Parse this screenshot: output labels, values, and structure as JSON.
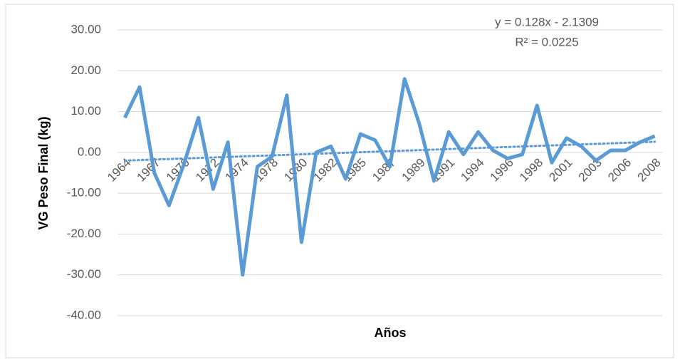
{
  "chart_data": {
    "type": "line",
    "y_label": "VG Peso Final (kg)",
    "x_label": "Años",
    "categories": [
      "1964",
      null,
      "1967",
      null,
      "1970",
      null,
      "1972",
      null,
      "1974",
      null,
      "1978",
      null,
      "1980",
      null,
      "1982",
      null,
      "1985",
      null,
      "1987",
      null,
      "1989",
      null,
      "1991",
      null,
      "1994",
      null,
      "1996",
      null,
      "1998",
      null,
      "2001",
      null,
      "2003",
      null,
      "2006",
      null,
      "2008"
    ],
    "values": [
      8.5,
      16,
      -5,
      -13,
      -3,
      8.5,
      -9,
      2.5,
      -30,
      -3.5,
      -1,
      14,
      -22,
      0,
      1.5,
      -6.5,
      4.5,
      3,
      -3.5,
      18,
      7,
      -7,
      5,
      -0.5,
      5,
      0.5,
      -1.5,
      -0.5,
      11.5,
      -2.5,
      3.5,
      1.5,
      -2,
      0.5,
      0.5,
      2.5,
      4
    ],
    "color": "#5b9bd5",
    "ylim": [
      -40,
      30
    ],
    "yticks": [
      {
        "value": -40,
        "label": "-40.00"
      },
      {
        "value": -30,
        "label": "-30.00"
      },
      {
        "value": -20,
        "label": "-20.00"
      },
      {
        "value": -10,
        "label": "-10.00"
      },
      {
        "value": 0,
        "label": "0.00"
      },
      {
        "value": 10,
        "label": "10.00"
      },
      {
        "value": 20,
        "label": "20.00"
      },
      {
        "value": 30,
        "label": "30.00"
      }
    ],
    "grid": true,
    "trendline": {
      "slope": 0.128,
      "intercept": -2.1309,
      "equation": "y = 0.128x - 2.1309",
      "r_squared": "R² = 0.0225"
    }
  }
}
